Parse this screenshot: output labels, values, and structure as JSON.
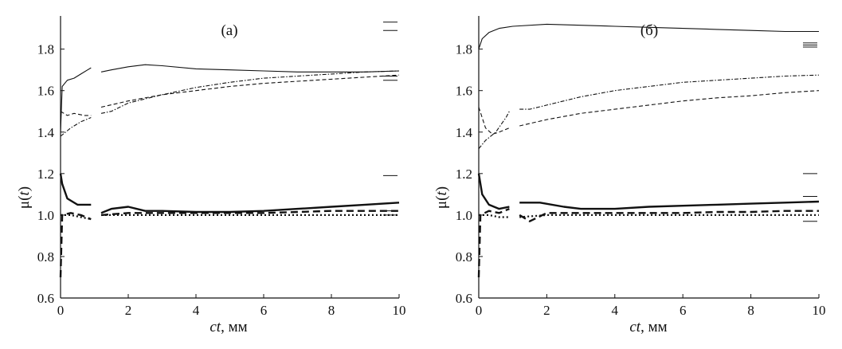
{
  "chart_data": [
    {
      "type": "line",
      "title": "(а)",
      "xlabel_italic": "ct",
      "xlabel_rest": ", мм",
      "ylabel_mu": "μ(",
      "ylabel_t": "t",
      "ylabel_close": ")",
      "xlim": [
        0,
        10
      ],
      "ylim": [
        0.6,
        1.96
      ],
      "xticks": [
        "0",
        "2",
        "4",
        "6",
        "8",
        "10"
      ],
      "yticks": [
        "0.6",
        "0.8",
        "1.0",
        "1.2",
        "1.4",
        "1.6",
        "1.8"
      ],
      "grid": false,
      "series": [
        {
          "style": "thin-solid",
          "segments": [
            [
              [
                0,
                1.4
              ],
              [
                0.05,
                1.62
              ],
              [
                0.2,
                1.65
              ],
              [
                0.4,
                1.66
              ],
              [
                0.6,
                1.68
              ],
              [
                0.8,
                1.7
              ],
              [
                0.9,
                1.71
              ]
            ],
            [
              [
                1.2,
                1.69
              ],
              [
                1.5,
                1.7
              ],
              [
                2.0,
                1.715
              ],
              [
                2.5,
                1.725
              ],
              [
                3.0,
                1.72
              ],
              [
                4.0,
                1.705
              ],
              [
                5.0,
                1.7
              ],
              [
                6.0,
                1.695
              ],
              [
                7.0,
                1.69
              ],
              [
                8.0,
                1.69
              ],
              [
                9.0,
                1.69
              ],
              [
                10.0,
                1.695
              ]
            ]
          ]
        },
        {
          "style": "thin-dash",
          "segments": [
            [
              [
                0,
                1.5
              ],
              [
                0.2,
                1.48
              ],
              [
                0.4,
                1.49
              ],
              [
                0.7,
                1.48
              ],
              [
                0.9,
                1.48
              ]
            ],
            [
              [
                1.2,
                1.52
              ],
              [
                2.0,
                1.55
              ],
              [
                3.0,
                1.58
              ],
              [
                4.0,
                1.6
              ],
              [
                5.0,
                1.62
              ],
              [
                6.0,
                1.635
              ],
              [
                7.0,
                1.645
              ],
              [
                8.0,
                1.655
              ],
              [
                9.0,
                1.665
              ],
              [
                10.0,
                1.675
              ]
            ]
          ]
        },
        {
          "style": "thin-dashdot",
          "segments": [
            [
              [
                0,
                1.38
              ],
              [
                0.3,
                1.42
              ],
              [
                0.6,
                1.45
              ],
              [
                0.9,
                1.47
              ]
            ],
            [
              [
                1.2,
                1.49
              ],
              [
                1.5,
                1.5
              ],
              [
                2.0,
                1.54
              ],
              [
                3.0,
                1.58
              ],
              [
                4.0,
                1.615
              ],
              [
                5.0,
                1.64
              ],
              [
                6.0,
                1.66
              ],
              [
                7.0,
                1.67
              ],
              [
                8.0,
                1.68
              ],
              [
                9.0,
                1.69
              ],
              [
                10.0,
                1.695
              ]
            ]
          ]
        },
        {
          "style": "thick-solid",
          "segments": [
            [
              [
                0,
                1.2
              ],
              [
                0.05,
                1.15
              ],
              [
                0.2,
                1.08
              ],
              [
                0.5,
                1.05
              ],
              [
                0.9,
                1.05
              ]
            ],
            [
              [
                1.2,
                1.01
              ],
              [
                1.5,
                1.03
              ],
              [
                2.0,
                1.04
              ],
              [
                2.5,
                1.02
              ],
              [
                3.0,
                1.02
              ],
              [
                4.0,
                1.015
              ],
              [
                5.0,
                1.015
              ],
              [
                6.0,
                1.02
              ],
              [
                7.0,
                1.03
              ],
              [
                8.0,
                1.04
              ],
              [
                9.0,
                1.05
              ],
              [
                10.0,
                1.06
              ]
            ]
          ]
        },
        {
          "style": "thick-dash",
          "segments": [
            [
              [
                0,
                0.7
              ],
              [
                0.05,
                1.0
              ],
              [
                0.3,
                1.01
              ],
              [
                0.6,
                1.0
              ],
              [
                0.9,
                0.98
              ]
            ],
            [
              [
                1.2,
                1.0
              ],
              [
                2.0,
                1.01
              ],
              [
                3.0,
                1.01
              ],
              [
                4.0,
                1.01
              ],
              [
                5.0,
                1.01
              ],
              [
                6.0,
                1.01
              ],
              [
                7.0,
                1.015
              ],
              [
                8.0,
                1.02
              ],
              [
                9.0,
                1.02
              ],
              [
                10.0,
                1.02
              ]
            ]
          ]
        },
        {
          "style": "thick-dot",
          "segments": [
            [
              [
                0,
                1.0
              ],
              [
                0.3,
                1.0
              ],
              [
                0.6,
                0.99
              ],
              [
                0.9,
                0.98
              ]
            ],
            [
              [
                1.2,
                1.0
              ],
              [
                2.0,
                1.0
              ],
              [
                3.0,
                1.0
              ],
              [
                4.0,
                1.0
              ],
              [
                5.0,
                1.0
              ],
              [
                6.0,
                1.0
              ],
              [
                7.0,
                1.0
              ],
              [
                8.0,
                1.0
              ],
              [
                9.0,
                1.0
              ],
              [
                10.0,
                1.0
              ]
            ]
          ]
        }
      ],
      "right_markers": [
        1.93,
        1.89,
        1.67,
        1.65,
        1.19,
        1.02,
        1.0
      ]
    },
    {
      "type": "line",
      "title": "(б)",
      "xlabel_italic": "ct",
      "xlabel_rest": ", мм",
      "ylabel_mu": "μ(",
      "ylabel_t": "t",
      "ylabel_close": ")",
      "xlim": [
        0,
        10
      ],
      "ylim": [
        0.6,
        1.96
      ],
      "xticks": [
        "0",
        "2",
        "4",
        "6",
        "8",
        "10"
      ],
      "yticks": [
        "0.6",
        "0.8",
        "1.0",
        "1.2",
        "1.4",
        "1.6",
        "1.8"
      ],
      "grid": false,
      "series": [
        {
          "style": "thin-solid",
          "segments": [
            [
              [
                0,
                1.8
              ],
              [
                0.1,
                1.85
              ],
              [
                0.3,
                1.88
              ],
              [
                0.6,
                1.9
              ],
              [
                1.0,
                1.91
              ],
              [
                2.0,
                1.92
              ],
              [
                3.0,
                1.915
              ],
              [
                4.0,
                1.91
              ],
              [
                5.0,
                1.905
              ],
              [
                6.0,
                1.9
              ],
              [
                7.0,
                1.895
              ],
              [
                8.0,
                1.89
              ],
              [
                9.0,
                1.885
              ],
              [
                10.0,
                1.885
              ]
            ]
          ]
        },
        {
          "style": "thin-dash",
          "segments": [
            [
              [
                0,
                1.52
              ],
              [
                0.2,
                1.42
              ],
              [
                0.4,
                1.39
              ],
              [
                0.6,
                1.4
              ],
              [
                0.9,
                1.42
              ]
            ],
            [
              [
                1.2,
                1.43
              ],
              [
                2.0,
                1.46
              ],
              [
                3.0,
                1.49
              ],
              [
                4.0,
                1.51
              ],
              [
                5.0,
                1.53
              ],
              [
                6.0,
                1.55
              ],
              [
                7.0,
                1.565
              ],
              [
                8.0,
                1.575
              ],
              [
                9.0,
                1.59
              ],
              [
                10.0,
                1.6
              ]
            ]
          ]
        },
        {
          "style": "thin-dashdot",
          "segments": [
            [
              [
                0,
                1.32
              ],
              [
                0.2,
                1.36
              ],
              [
                0.5,
                1.4
              ],
              [
                0.8,
                1.47
              ],
              [
                0.9,
                1.5
              ]
            ],
            [
              [
                1.2,
                1.51
              ],
              [
                1.5,
                1.51
              ],
              [
                2.0,
                1.53
              ],
              [
                3.0,
                1.57
              ],
              [
                4.0,
                1.6
              ],
              [
                5.0,
                1.62
              ],
              [
                6.0,
                1.64
              ],
              [
                7.0,
                1.65
              ],
              [
                8.0,
                1.66
              ],
              [
                9.0,
                1.67
              ],
              [
                10.0,
                1.675
              ]
            ]
          ]
        },
        {
          "style": "thick-solid",
          "segments": [
            [
              [
                0,
                1.2
              ],
              [
                0.1,
                1.1
              ],
              [
                0.3,
                1.05
              ],
              [
                0.6,
                1.03
              ],
              [
                0.9,
                1.04
              ]
            ],
            [
              [
                1.2,
                1.06
              ],
              [
                1.8,
                1.06
              ],
              [
                2.5,
                1.04
              ],
              [
                3.0,
                1.03
              ],
              [
                4.0,
                1.03
              ],
              [
                5.0,
                1.04
              ],
              [
                6.0,
                1.045
              ],
              [
                7.0,
                1.05
              ],
              [
                8.0,
                1.055
              ],
              [
                9.0,
                1.06
              ],
              [
                10.0,
                1.065
              ]
            ]
          ]
        },
        {
          "style": "thick-dash",
          "segments": [
            [
              [
                0,
                0.7
              ],
              [
                0.05,
                1.0
              ],
              [
                0.3,
                1.02
              ],
              [
                0.6,
                1.01
              ],
              [
                0.9,
                1.03
              ]
            ],
            [
              [
                1.2,
                1.0
              ],
              [
                1.5,
                0.97
              ],
              [
                2.0,
                1.01
              ],
              [
                3.0,
                1.01
              ],
              [
                4.0,
                1.01
              ],
              [
                5.0,
                1.01
              ],
              [
                6.0,
                1.01
              ],
              [
                7.0,
                1.015
              ],
              [
                8.0,
                1.015
              ],
              [
                9.0,
                1.02
              ],
              [
                10.0,
                1.02
              ]
            ]
          ]
        },
        {
          "style": "thick-dot",
          "segments": [
            [
              [
                0,
                1.0
              ],
              [
                0.3,
                1.0
              ],
              [
                0.6,
                0.99
              ],
              [
                0.9,
                0.99
              ]
            ],
            [
              [
                1.2,
                0.99
              ],
              [
                2.0,
                1.0
              ],
              [
                3.0,
                1.0
              ],
              [
                4.0,
                1.0
              ],
              [
                5.0,
                1.0
              ],
              [
                6.0,
                1.0
              ],
              [
                7.0,
                1.0
              ],
              [
                8.0,
                1.0
              ],
              [
                9.0,
                1.0
              ],
              [
                10.0,
                1.0
              ]
            ]
          ]
        }
      ],
      "right_markers": [
        1.83,
        1.82,
        1.81,
        1.2,
        1.09,
        0.97
      ]
    }
  ]
}
